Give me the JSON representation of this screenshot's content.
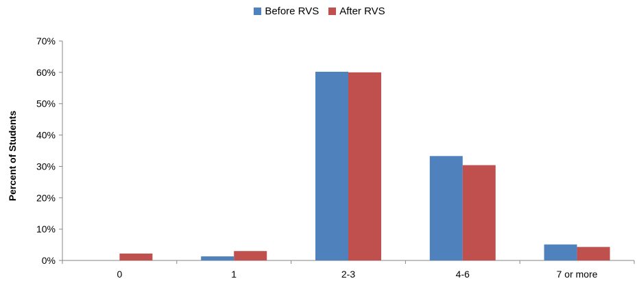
{
  "legend": [
    {
      "name": "Before RVS",
      "color": "#4F81BD"
    },
    {
      "name": "After RVS",
      "color": "#C0504D"
    }
  ],
  "chart_data": {
    "type": "bar",
    "title": "",
    "xlabel": "",
    "ylabel": "Percent of Students",
    "categories": [
      "0",
      "1",
      "2-3",
      "4-6",
      "7 or more"
    ],
    "series": [
      {
        "name": "Before RVS",
        "color": "#4F81BD",
        "values": [
          0,
          1.3,
          60.2,
          33.3,
          5.1
        ]
      },
      {
        "name": "After RVS",
        "color": "#C0504D",
        "values": [
          2.2,
          3.0,
          60.0,
          30.4,
          4.3
        ]
      }
    ],
    "ylim": [
      0,
      70
    ],
    "yticks": [
      "0%",
      "10%",
      "20%",
      "30%",
      "40%",
      "50%",
      "60%",
      "70%"
    ],
    "grid": false,
    "legend_position": "top"
  }
}
